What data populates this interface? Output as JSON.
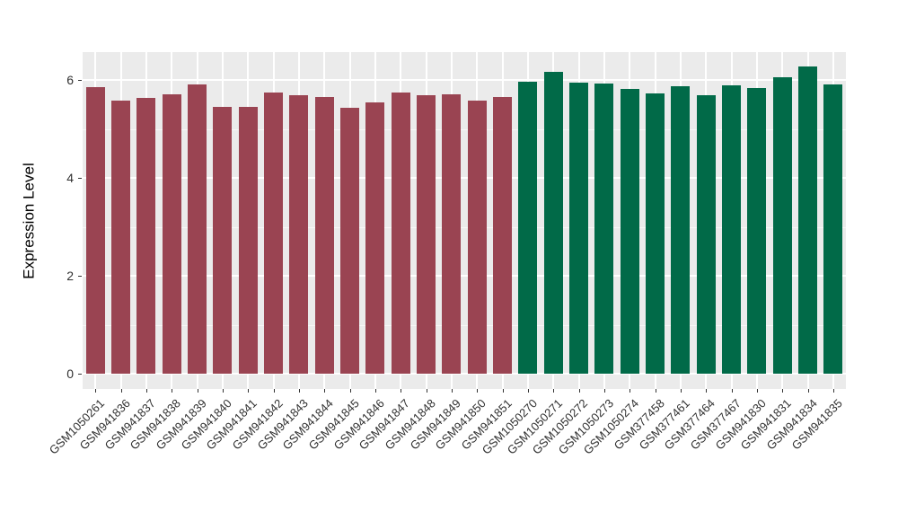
{
  "figure": {
    "background": "#FFFFFF"
  },
  "chart_data": {
    "type": "bar",
    "title": "",
    "xlabel": "",
    "ylabel": "Expression Level",
    "ylim": [
      -0.31,
      6.57
    ],
    "yticks": [
      0,
      2,
      4,
      6
    ],
    "yticks_minor": [
      1,
      3,
      5
    ],
    "grid": "on",
    "legend": "none",
    "panel_bg": "#EBEBEB",
    "grid_color": "#FFFFFF",
    "tick_color": "#333333",
    "axis_text_color": "#303030",
    "groups": [
      {
        "name": "group-1",
        "color": "#9A4452"
      },
      {
        "name": "group-2",
        "color": "#016A48"
      }
    ],
    "bars": [
      {
        "label": "GSM1050261",
        "value": 5.86,
        "group": 0
      },
      {
        "label": "GSM941836",
        "value": 5.57,
        "group": 0
      },
      {
        "label": "GSM941837",
        "value": 5.63,
        "group": 0
      },
      {
        "label": "GSM941838",
        "value": 5.7,
        "group": 0
      },
      {
        "label": "GSM941839",
        "value": 5.9,
        "group": 0
      },
      {
        "label": "GSM941840",
        "value": 5.45,
        "group": 0
      },
      {
        "label": "GSM941841",
        "value": 5.45,
        "group": 0
      },
      {
        "label": "GSM941842",
        "value": 5.75,
        "group": 0
      },
      {
        "label": "GSM941843",
        "value": 5.68,
        "group": 0
      },
      {
        "label": "GSM941844",
        "value": 5.66,
        "group": 0
      },
      {
        "label": "GSM941845",
        "value": 5.43,
        "group": 0
      },
      {
        "label": "GSM941846",
        "value": 5.54,
        "group": 0
      },
      {
        "label": "GSM941847",
        "value": 5.74,
        "group": 0
      },
      {
        "label": "GSM941848",
        "value": 5.69,
        "group": 0
      },
      {
        "label": "GSM941849",
        "value": 5.7,
        "group": 0
      },
      {
        "label": "GSM941850",
        "value": 5.57,
        "group": 0
      },
      {
        "label": "GSM941851",
        "value": 5.65,
        "group": 0
      },
      {
        "label": "GSM1050270",
        "value": 5.97,
        "group": 1
      },
      {
        "label": "GSM1050271",
        "value": 6.17,
        "group": 1
      },
      {
        "label": "GSM1050272",
        "value": 5.95,
        "group": 1
      },
      {
        "label": "GSM1050273",
        "value": 5.93,
        "group": 1
      },
      {
        "label": "GSM1050274",
        "value": 5.81,
        "group": 1
      },
      {
        "label": "GSM377458",
        "value": 5.73,
        "group": 1
      },
      {
        "label": "GSM377461",
        "value": 5.87,
        "group": 1
      },
      {
        "label": "GSM377464",
        "value": 5.69,
        "group": 1
      },
      {
        "label": "GSM377467",
        "value": 5.89,
        "group": 1
      },
      {
        "label": "GSM941830",
        "value": 5.84,
        "group": 1
      },
      {
        "label": "GSM941831",
        "value": 6.06,
        "group": 1
      },
      {
        "label": "GSM941834",
        "value": 6.28,
        "group": 1
      },
      {
        "label": "GSM941835",
        "value": 5.9,
        "group": 1
      }
    ]
  }
}
